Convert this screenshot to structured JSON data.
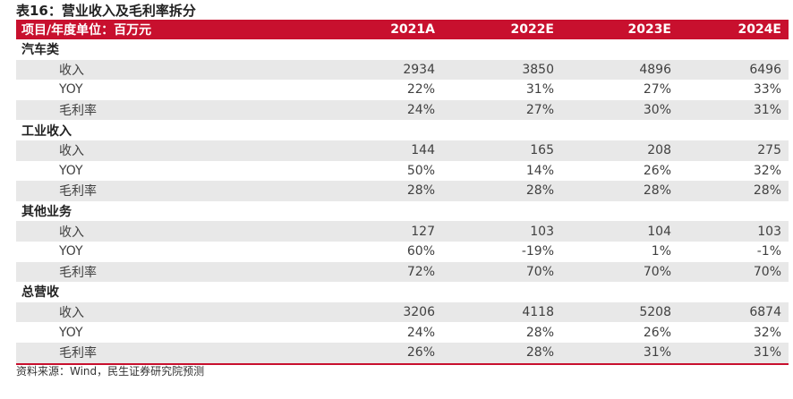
{
  "title": "表16：营业收入及毛利率拆分",
  "header": [
    "项目/年度单位：百万元",
    "2021A",
    "2022E",
    "2023E",
    "2024E"
  ],
  "sections": [
    {
      "name": "汽车类",
      "rows": [
        {
          "label": "收入",
          "values": [
            "2934",
            "3850",
            "4896",
            "6496"
          ]
        },
        {
          "label": "YOY",
          "values": [
            "22%",
            "31%",
            "27%",
            "33%"
          ]
        },
        {
          "label": "毛利率",
          "values": [
            "24%",
            "27%",
            "30%",
            "31%"
          ]
        }
      ]
    },
    {
      "name": "工业收入",
      "rows": [
        {
          "label": "收入",
          "values": [
            "144",
            "165",
            "208",
            "275"
          ]
        },
        {
          "label": "YOY",
          "values": [
            "50%",
            "14%",
            "26%",
            "32%"
          ]
        },
        {
          "label": "毛利率",
          "values": [
            "28%",
            "28%",
            "28%",
            "28%"
          ]
        }
      ]
    },
    {
      "name": "其他业务",
      "rows": [
        {
          "label": "收入",
          "values": [
            "127",
            "103",
            "104",
            "103"
          ]
        },
        {
          "label": "YOY",
          "values": [
            "60%",
            "-19%",
            "1%",
            "-1%"
          ]
        },
        {
          "label": "毛利率",
          "values": [
            "72%",
            "70%",
            "70%",
            "70%"
          ]
        }
      ]
    },
    {
      "name": "总营收",
      "rows": [
        {
          "label": "收入",
          "values": [
            "3206",
            "4118",
            "5208",
            "6874"
          ]
        },
        {
          "label": "YOY",
          "values": [
            "24%",
            "28%",
            "26%",
            "32%"
          ]
        },
        {
          "label": "毛利率",
          "values": [
            "26%",
            "28%",
            "31%",
            "31%"
          ]
        }
      ]
    }
  ],
  "source": "资料来源：Wind，民生证券研究院预测",
  "colors": {
    "header_bg": "#c8102e",
    "row_shade": "#e8e8e8"
  }
}
